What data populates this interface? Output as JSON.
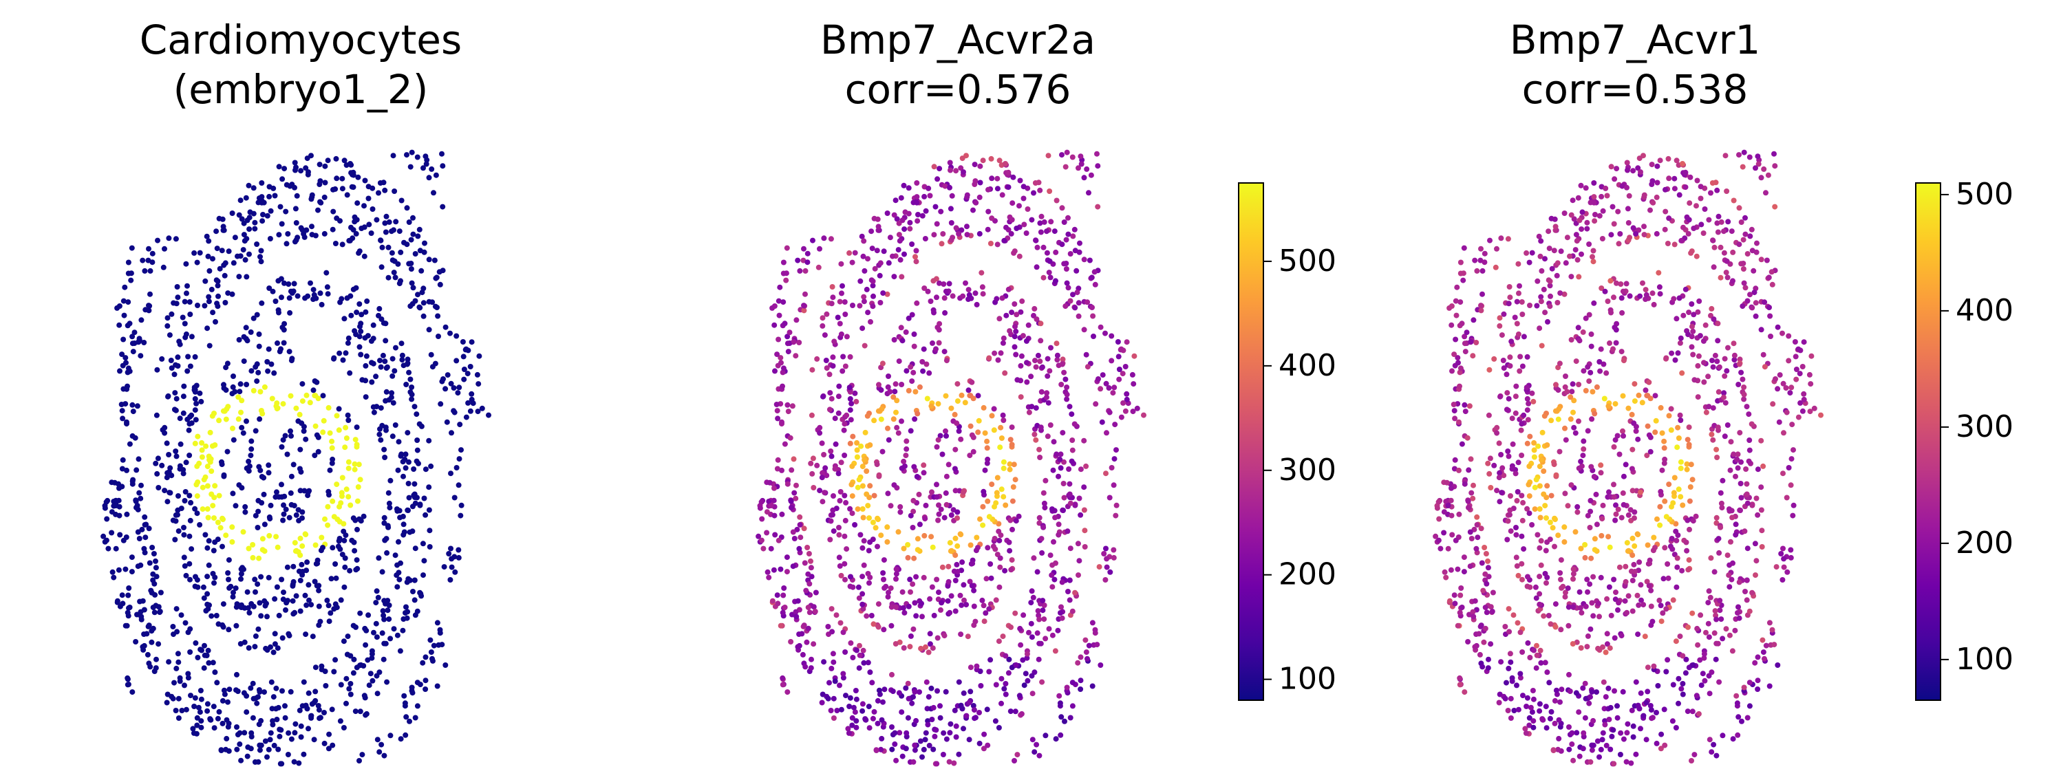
{
  "chart_data": [
    {
      "type": "scatter",
      "panel": "spatial-mask",
      "title": [
        "Cardiomyocytes",
        "(embryo1_2)"
      ],
      "background_color": "#0d0887",
      "highlight_color": "#f0f921",
      "highlight_label": "Cardiomyocytes",
      "colorbar": null
    },
    {
      "type": "scatter",
      "panel": "spatial-expression",
      "title": [
        "Bmp7_Acvr2a",
        "corr=0.576"
      ],
      "colormap": "plasma",
      "colorbar": {
        "min": 80,
        "max": 575,
        "ticks": [
          100,
          200,
          300,
          400,
          500
        ]
      }
    },
    {
      "type": "scatter",
      "panel": "spatial-expression",
      "title": [
        "Bmp7_Acvr1",
        "corr=0.538"
      ],
      "colormap": "plasma",
      "colorbar": {
        "min": 65,
        "max": 510,
        "ticks": [
          100,
          200,
          300,
          400,
          500
        ]
      }
    }
  ],
  "colors": {
    "plasma": [
      "#0d0887",
      "#46039f",
      "#7201a8",
      "#9c179e",
      "#bd3786",
      "#d8576b",
      "#ed7953",
      "#fb9f3a",
      "#fdca26",
      "#f0f921"
    ]
  }
}
